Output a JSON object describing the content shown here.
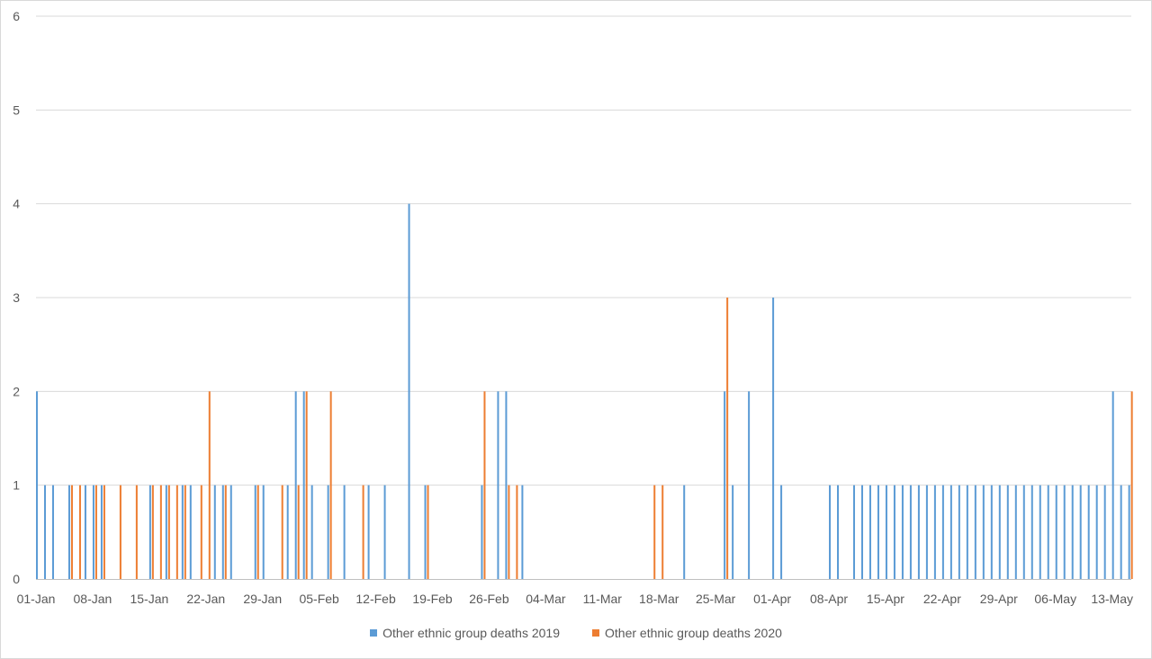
{
  "chart_data": {
    "type": "bar",
    "x_start_label": "01-Jan",
    "x_count": 136,
    "xticks": [
      "01-Jan",
      "08-Jan",
      "15-Jan",
      "22-Jan",
      "29-Jan",
      "05-Feb",
      "12-Feb",
      "19-Feb",
      "26-Feb",
      "04-Mar",
      "11-Mar",
      "18-Mar",
      "25-Mar",
      "01-Apr",
      "08-Apr",
      "15-Apr",
      "22-Apr",
      "29-Apr",
      "06-May",
      "13-May"
    ],
    "yticks": [
      "0",
      "1",
      "2",
      "3",
      "4",
      "5",
      "6"
    ],
    "ylim": [
      0,
      6
    ],
    "grid": true,
    "legend_position": "bottom",
    "series": [
      {
        "name": "Other ethnic group deaths 2019",
        "color": "#5b9bd5",
        "values": [
          2,
          1,
          1,
          0,
          1,
          0,
          1,
          1,
          1,
          0,
          0,
          0,
          0,
          0,
          1,
          0,
          1,
          0,
          1,
          1,
          0,
          0,
          1,
          1,
          1,
          0,
          0,
          1,
          1,
          0,
          0,
          1,
          2,
          2,
          1,
          0,
          1,
          0,
          1,
          0,
          0,
          1,
          0,
          1,
          0,
          0,
          4,
          0,
          1,
          0,
          0,
          0,
          0,
          0,
          0,
          1,
          0,
          2,
          2,
          0,
          1,
          0,
          0,
          0,
          0,
          0,
          0,
          0,
          0,
          0,
          0,
          0,
          0,
          0,
          0,
          0,
          0,
          0,
          0,
          0,
          1,
          0,
          0,
          0,
          0,
          2,
          1,
          0,
          2,
          0,
          0,
          3,
          1,
          0,
          0,
          0,
          0,
          0,
          1,
          1,
          0,
          1,
          1,
          1,
          1,
          1,
          1,
          1,
          1,
          1,
          1,
          1,
          1,
          1,
          1,
          1,
          1,
          1,
          1,
          1,
          1,
          1,
          1,
          1,
          1,
          1,
          1,
          1,
          1,
          1,
          1,
          1,
          1,
          2,
          1,
          1
        ]
      },
      {
        "name": "Other ethnic group deaths 2020",
        "color": "#ed7d31",
        "values": [
          0,
          0,
          0,
          0,
          1,
          1,
          0,
          1,
          1,
          0,
          1,
          0,
          1,
          0,
          1,
          1,
          1,
          1,
          1,
          0,
          1,
          2,
          0,
          1,
          0,
          0,
          0,
          1,
          0,
          0,
          1,
          0,
          1,
          2,
          0,
          0,
          2,
          0,
          0,
          0,
          1,
          0,
          0,
          0,
          0,
          0,
          0,
          0,
          1,
          0,
          0,
          0,
          0,
          0,
          0,
          2,
          0,
          0,
          1,
          1,
          0,
          0,
          0,
          0,
          0,
          0,
          0,
          0,
          0,
          0,
          0,
          0,
          0,
          0,
          0,
          0,
          1,
          1,
          0,
          0,
          0,
          0,
          0,
          0,
          0,
          3,
          0,
          0,
          0,
          0,
          0,
          0,
          0,
          0,
          0,
          0,
          0,
          0,
          0,
          0,
          0,
          0,
          0,
          0,
          0,
          0,
          0,
          0,
          0,
          0,
          0,
          0,
          0,
          0,
          0,
          0,
          0,
          0,
          0,
          0,
          0,
          0,
          0,
          0,
          0,
          0,
          0,
          0,
          0,
          0,
          0,
          0,
          0,
          0,
          0,
          2
        ]
      }
    ]
  }
}
